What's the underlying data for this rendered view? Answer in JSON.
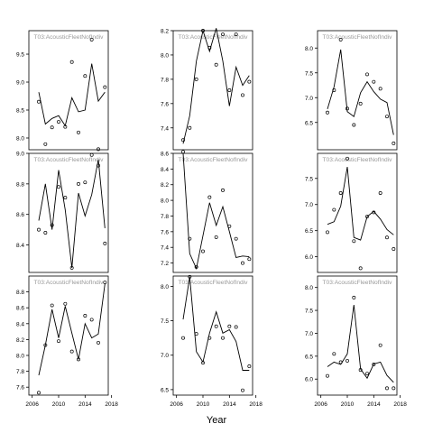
{
  "figure": {
    "xlabel": "Year"
  },
  "chart_data": [
    {
      "type": "line",
      "title": "T03:AcousticFleetNofIndiv",
      "xlim": [
        2005.5,
        2017.5
      ],
      "ylim": [
        7.79,
        9.92
      ],
      "yticks": [
        8.0,
        8.5,
        9.0,
        9.5
      ],
      "xticks": [],
      "xticklabels": [],
      "line": {
        "x": [
          2007,
          2008,
          2009,
          2010,
          2011,
          2012,
          2013,
          2014,
          2015,
          2016,
          2017
        ],
        "y": [
          8.82,
          8.25,
          8.35,
          8.4,
          8.22,
          8.72,
          8.47,
          8.5,
          9.33,
          8.66,
          8.82
        ]
      },
      "points": {
        "x": [
          2007,
          2008,
          2009,
          2010,
          2011,
          2012,
          2013,
          2014,
          2015,
          2016,
          2017
        ],
        "y": [
          8.65,
          7.89,
          8.19,
          8.29,
          8.2,
          9.36,
          8.1,
          9.11,
          9.76,
          7.8,
          8.91
        ]
      }
    },
    {
      "type": "line",
      "title": "T03:AcousticFleetNofIndiv",
      "xlim": [
        2005.5,
        2017.5
      ],
      "ylim": [
        7.22,
        8.2
      ],
      "yticks": [
        7.4,
        7.6,
        7.8,
        8.0,
        8.2
      ],
      "xticks": [],
      "xticklabels": [],
      "line": {
        "x": [
          2007,
          2008,
          2009,
          2010,
          2011,
          2012,
          2013,
          2014,
          2015,
          2016,
          2017
        ],
        "y": [
          7.27,
          7.5,
          7.95,
          8.2,
          8.03,
          8.22,
          7.95,
          7.58,
          7.9,
          7.75,
          7.83
        ]
      },
      "points": {
        "x": [
          2007,
          2008,
          2009,
          2010,
          2011,
          2012,
          2013,
          2014,
          2015,
          2016,
          2017
        ],
        "y": [
          7.3,
          7.4,
          7.8,
          8.2,
          8.06,
          7.92,
          8.17,
          7.71,
          8.17,
          7.67,
          7.78
        ]
      }
    },
    {
      "type": "line",
      "title": "T03:AcousticFleetNofIndiv",
      "xlim": [
        2005.5,
        2017.5
      ],
      "ylim": [
        5.95,
        8.35
      ],
      "yticks": [
        6.5,
        7.0,
        7.5,
        8.0
      ],
      "xticks": [],
      "xticklabels": [],
      "line": {
        "x": [
          2007,
          2008,
          2009,
          2010,
          2011,
          2012,
          2013,
          2014,
          2015,
          2016,
          2017
        ],
        "y": [
          6.77,
          7.22,
          7.97,
          6.72,
          6.62,
          7.1,
          7.32,
          7.12,
          6.97,
          6.9,
          6.25
        ]
      },
      "points": {
        "x": [
          2007,
          2008,
          2009,
          2010,
          2011,
          2012,
          2013,
          2014,
          2015,
          2016,
          2017
        ],
        "y": [
          6.7,
          7.15,
          8.17,
          6.78,
          6.45,
          6.88,
          7.47,
          7.32,
          7.18,
          6.62,
          6.08
        ]
      }
    },
    {
      "type": "line",
      "title": "T03:AcousticFleetNofIndiv",
      "xlim": [
        2005.5,
        2017.5
      ],
      "ylim": [
        8.22,
        9.0
      ],
      "yticks": [
        8.4,
        8.6,
        8.8,
        9.0
      ],
      "xticks": [],
      "xticklabels": [],
      "line": {
        "x": [
          2007,
          2008,
          2009,
          2010,
          2011,
          2012,
          2013,
          2014,
          2015,
          2016,
          2017
        ],
        "y": [
          8.56,
          8.8,
          8.5,
          8.89,
          8.63,
          8.25,
          8.74,
          8.59,
          8.73,
          8.96,
          8.51
        ]
      },
      "points": {
        "x": [
          2007,
          2008,
          2009,
          2010,
          2011,
          2012,
          2013,
          2014,
          2015,
          2016,
          2017
        ],
        "y": [
          8.5,
          8.48,
          8.53,
          8.78,
          8.71,
          8.25,
          8.8,
          8.81,
          8.99,
          8.92,
          8.41
        ]
      }
    },
    {
      "type": "line",
      "title": "T03:AcousticFleetNofIndiv",
      "xlim": [
        2005.5,
        2017.5
      ],
      "ylim": [
        7.08,
        8.6
      ],
      "yticks": [
        7.2,
        7.4,
        7.6,
        7.8,
        8.0,
        8.2,
        8.4,
        8.6
      ],
      "xticks": [],
      "xticklabels": [],
      "line": {
        "x": [
          2007,
          2008,
          2009,
          2010,
          2011,
          2012,
          2013,
          2014,
          2015,
          2016,
          2017
        ],
        "y": [
          8.6,
          7.32,
          7.13,
          7.55,
          7.97,
          7.68,
          7.92,
          7.6,
          7.27,
          7.29,
          7.28
        ]
      },
      "points": {
        "x": [
          2007,
          2008,
          2009,
          2010,
          2011,
          2012,
          2013,
          2014,
          2015,
          2016,
          2017
        ],
        "y": [
          8.62,
          7.51,
          7.15,
          7.35,
          8.04,
          7.53,
          8.13,
          7.67,
          7.51,
          7.2,
          7.25
        ]
      }
    },
    {
      "type": "line",
      "title": "T03:AcousticFleetNofIndiv",
      "xlim": [
        2005.5,
        2017.5
      ],
      "ylim": [
        5.7,
        7.98
      ],
      "yticks": [
        6.0,
        6.5,
        7.0,
        7.5
      ],
      "xticks": [],
      "xticklabels": [],
      "line": {
        "x": [
          2007,
          2008,
          2009,
          2010,
          2011,
          2012,
          2013,
          2014,
          2015,
          2016,
          2017
        ],
        "y": [
          6.62,
          6.67,
          6.97,
          7.72,
          6.37,
          6.32,
          6.77,
          6.87,
          6.72,
          6.52,
          6.42
        ]
      },
      "points": {
        "x": [
          2007,
          2008,
          2009,
          2010,
          2011,
          2012,
          2013,
          2014,
          2015,
          2016,
          2017
        ],
        "y": [
          6.47,
          6.9,
          7.22,
          7.88,
          6.3,
          5.78,
          6.77,
          6.85,
          7.22,
          6.37,
          6.15
        ]
      }
    },
    {
      "type": "line",
      "title": "T03:AcousticFleetNofIndiv",
      "xlim": [
        2005.5,
        2017.5
      ],
      "ylim": [
        7.5,
        9.0
      ],
      "yticks": [
        7.6,
        7.8,
        8.0,
        8.2,
        8.4,
        8.6,
        8.8
      ],
      "xticks": [
        2006,
        2010,
        2014,
        2018
      ],
      "xticklabels": [
        "2006",
        "2010",
        "2014",
        "2018"
      ],
      "line": {
        "x": [
          2007,
          2008,
          2009,
          2010,
          2011,
          2012,
          2013,
          2014,
          2015,
          2016,
          2017
        ],
        "y": [
          7.75,
          8.13,
          8.58,
          8.22,
          8.62,
          8.28,
          7.95,
          8.4,
          8.22,
          8.27,
          8.9
        ]
      },
      "points": {
        "x": [
          2007,
          2008,
          2009,
          2010,
          2011,
          2012,
          2013,
          2014,
          2015,
          2016,
          2017
        ],
        "y": [
          7.53,
          8.13,
          8.63,
          8.18,
          8.65,
          8.05,
          7.95,
          8.5,
          8.45,
          8.16,
          8.92
        ]
      }
    },
    {
      "type": "line",
      "title": "T03:AcousticFleetNofIndiv",
      "xlim": [
        2005.5,
        2017.5
      ],
      "ylim": [
        6.42,
        8.15
      ],
      "yticks": [
        6.5,
        7.0,
        7.5,
        8.0
      ],
      "xticks": [
        2006,
        2010,
        2014,
        2018
      ],
      "xticklabels": [
        "2006",
        "2010",
        "2014",
        "2018"
      ],
      "line": {
        "x": [
          2007,
          2008,
          2009,
          2010,
          2011,
          2012,
          2013,
          2014,
          2015,
          2016,
          2017
        ],
        "y": [
          7.52,
          8.14,
          7.05,
          6.9,
          7.32,
          7.63,
          7.32,
          7.37,
          7.2,
          6.78,
          6.78
        ]
      },
      "points": {
        "x": [
          2007,
          2008,
          2009,
          2010,
          2011,
          2012,
          2013,
          2014,
          2015,
          2016,
          2017
        ],
        "y": [
          7.25,
          8.14,
          7.31,
          6.89,
          7.25,
          7.42,
          7.25,
          7.42,
          7.41,
          6.49,
          6.84
        ]
      }
    },
    {
      "type": "line",
      "title": "T03:AcousticFleetNofIndiv",
      "xlim": [
        2005.5,
        2017.5
      ],
      "ylim": [
        5.65,
        8.25
      ],
      "yticks": [
        6.0,
        6.5,
        7.0,
        7.5,
        8.0
      ],
      "xticks": [
        2006,
        2010,
        2014,
        2018
      ],
      "xticklabels": [
        "2006",
        "2010",
        "2014",
        "2018"
      ],
      "line": {
        "x": [
          2007,
          2008,
          2009,
          2010,
          2011,
          2012,
          2013,
          2014,
          2015,
          2016,
          2017
        ],
        "y": [
          6.27,
          6.37,
          6.32,
          6.55,
          7.62,
          6.22,
          6.02,
          6.33,
          6.37,
          6.08,
          5.93
        ]
      },
      "points": {
        "x": [
          2007,
          2008,
          2009,
          2010,
          2011,
          2012,
          2013,
          2014,
          2015,
          2016,
          2017
        ],
        "y": [
          6.07,
          6.55,
          6.37,
          6.4,
          7.78,
          6.2,
          6.12,
          6.32,
          6.74,
          5.8,
          5.8
        ]
      }
    }
  ]
}
